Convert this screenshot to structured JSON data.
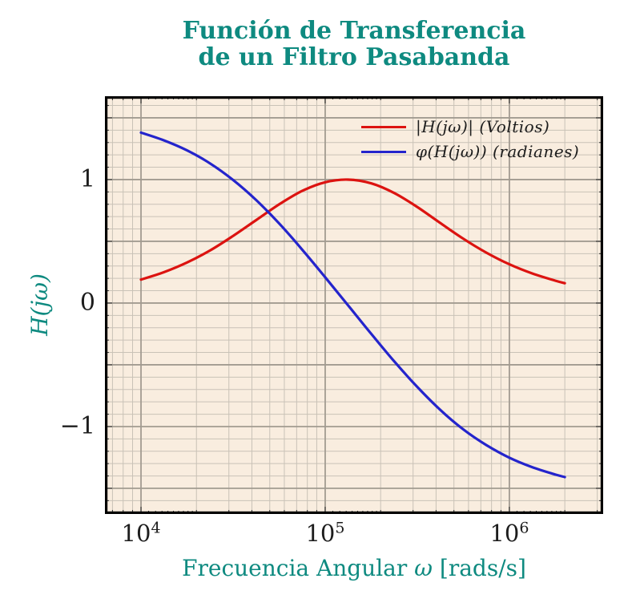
{
  "title": {
    "line1": "Función de Transferencia",
    "line2": "de un Filtro Pasabanda"
  },
  "chart_data": {
    "type": "line",
    "title": "Función de Transferencia de un Filtro Pasabanda",
    "xlabel": "Frecuencia Angular ω [rads/s]",
    "xlabel_parts": {
      "pre": "Frecuencia Angular ",
      "symbol": "ω",
      "post": " [rads/s]"
    },
    "ylabel": "H(jω)",
    "x_scale": "log",
    "xlim": [
      6370,
      3230000
    ],
    "ylim": [
      -1.708,
      1.675
    ],
    "x_ticks": [
      {
        "base": "10",
        "exp": "4",
        "value": 10000
      },
      {
        "base": "10",
        "exp": "5",
        "value": 100000
      },
      {
        "base": "10",
        "exp": "6",
        "value": 1000000
      }
    ],
    "y_ticks": [
      {
        "label": "1",
        "value": 1
      },
      {
        "label": "0",
        "value": 0
      },
      {
        "label": "−1",
        "value": -1
      }
    ],
    "grid": {
      "x_minor_mantissas": [
        2,
        3,
        4,
        5,
        6,
        7,
        8,
        9
      ],
      "y_minor_step": 0.1,
      "y_major_step": 0.5,
      "minor_color": "#c9c2b7",
      "major_color": "#a29b91"
    },
    "colors": {
      "plot_bg": "#f9eddf",
      "axis_frame": "#000000",
      "accent_teal": "#0e8a80",
      "tick": "#2f2f2f"
    },
    "legend": {
      "position": "top-right",
      "frame": false
    },
    "series": [
      {
        "name": "|H(jω)| (Voltios)",
        "color": "#dc1310",
        "x": [
          10000,
          13300,
          17800,
          23700,
          31600,
          42200,
          56200,
          75000,
          100000,
          133000,
          178000,
          237000,
          316000,
          422000,
          562000,
          750000,
          1000000,
          1330000,
          1780000,
          2000000
        ],
        "y": [
          0.19,
          0.25,
          0.329,
          0.426,
          0.543,
          0.672,
          0.799,
          0.908,
          0.978,
          1.0,
          0.969,
          0.891,
          0.778,
          0.648,
          0.521,
          0.408,
          0.314,
          0.24,
          0.181,
          0.161
        ]
      },
      {
        "name": "φ(H(jω)) (radianes)",
        "color": "#2424cc",
        "x": [
          10000,
          13300,
          17800,
          23700,
          31600,
          42200,
          56200,
          75000,
          100000,
          133000,
          178000,
          237000,
          316000,
          422000,
          562000,
          750000,
          1000000,
          1330000,
          1780000,
          2000000
        ],
        "y": [
          1.38,
          1.318,
          1.236,
          1.131,
          0.997,
          0.834,
          0.645,
          0.433,
          0.209,
          -0.018,
          -0.25,
          -0.472,
          -0.679,
          -0.866,
          -1.023,
          -1.15,
          -1.252,
          -1.329,
          -1.389,
          -1.409
        ]
      }
    ]
  }
}
